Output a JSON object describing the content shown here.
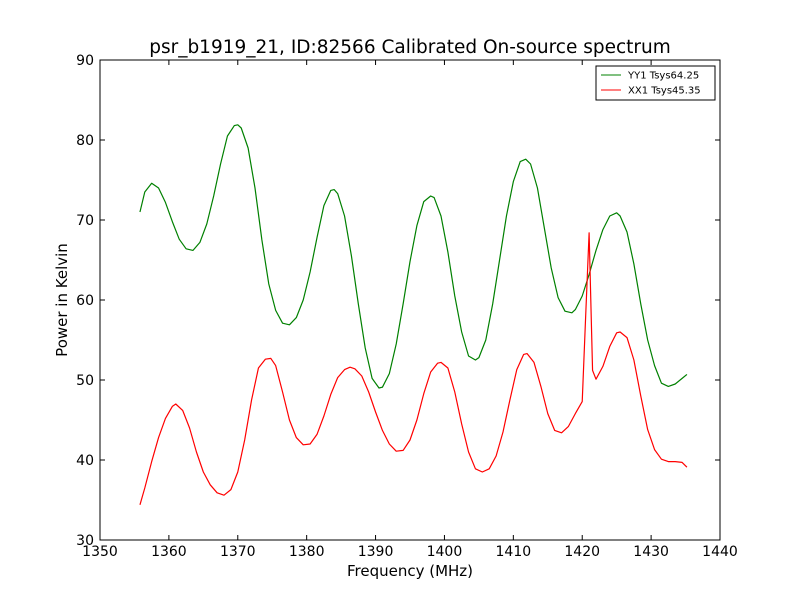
{
  "chart_data": {
    "type": "line",
    "title": "psr_b1919_21, ID:82566 Calibrated On-source spectrum",
    "xlabel": "Frequency (MHz)",
    "ylabel": "Power in Kelvin",
    "xlim": [
      1350,
      1440
    ],
    "ylim": [
      30,
      90
    ],
    "xticks": [
      1350,
      1360,
      1370,
      1380,
      1390,
      1400,
      1410,
      1420,
      1430,
      1440
    ],
    "yticks": [
      30,
      40,
      50,
      60,
      70,
      80,
      90
    ],
    "grid": false,
    "legend_position": "upper-right",
    "series": [
      {
        "name": "YY1 Tsys64.25",
        "color": "#008000",
        "x": [
          1355.8,
          1356.5,
          1357.5,
          1358.5,
          1359.5,
          1360.5,
          1361.5,
          1362.5,
          1363.5,
          1364.5,
          1365.5,
          1366.5,
          1367.5,
          1368.5,
          1369.5,
          1370.0,
          1370.5,
          1371.5,
          1372.5,
          1373.5,
          1374.5,
          1375.5,
          1376.5,
          1377.5,
          1378.5,
          1379.5,
          1380.5,
          1381.5,
          1382.5,
          1383.5,
          1384.0,
          1384.5,
          1385.5,
          1386.5,
          1387.5,
          1388.5,
          1389.5,
          1390.5,
          1391.0,
          1392.0,
          1393.0,
          1394.0,
          1395.0,
          1396.0,
          1397.0,
          1398.0,
          1398.5,
          1399.5,
          1400.5,
          1401.5,
          1402.5,
          1403.5,
          1404.5,
          1405.0,
          1406.0,
          1407.0,
          1408.0,
          1409.0,
          1410.0,
          1411.0,
          1411.8,
          1412.5,
          1413.5,
          1414.5,
          1415.5,
          1416.5,
          1417.5,
          1418.5,
          1419.0,
          1420.0,
          1421.0,
          1422.0,
          1423.0,
          1424.0,
          1425.0,
          1425.5,
          1426.5,
          1427.5,
          1428.5,
          1429.5,
          1430.5,
          1431.5,
          1432.5,
          1433.5,
          1434.5,
          1435.2
        ],
        "y": [
          71.0,
          73.5,
          74.6,
          74.0,
          72.2,
          69.8,
          67.6,
          66.4,
          66.2,
          67.2,
          69.5,
          73.0,
          77.0,
          80.5,
          81.8,
          81.9,
          81.5,
          79.0,
          74.0,
          67.5,
          62.0,
          58.7,
          57.1,
          56.9,
          57.8,
          60.0,
          63.5,
          67.8,
          71.8,
          73.7,
          73.8,
          73.3,
          70.5,
          65.5,
          59.5,
          54.0,
          50.2,
          49.0,
          49.1,
          50.8,
          54.5,
          59.5,
          64.8,
          69.3,
          72.3,
          73.0,
          72.8,
          70.5,
          66.0,
          60.5,
          56.0,
          53.0,
          52.5,
          52.8,
          55.0,
          59.5,
          65.0,
          70.5,
          74.8,
          77.3,
          77.6,
          77.0,
          74.0,
          69.0,
          64.0,
          60.3,
          58.6,
          58.4,
          58.8,
          60.5,
          63.2,
          66.2,
          68.8,
          70.5,
          70.9,
          70.5,
          68.5,
          64.5,
          59.5,
          55.0,
          51.8,
          49.6,
          49.2,
          49.5,
          50.2,
          50.7
        ]
      },
      {
        "name": "XX1 Tsys45.35",
        "color": "#ff0000",
        "x": [
          1355.8,
          1356.5,
          1357.5,
          1358.5,
          1359.5,
          1360.5,
          1361.0,
          1362.0,
          1363.0,
          1364.0,
          1365.0,
          1366.0,
          1367.0,
          1368.0,
          1369.0,
          1370.0,
          1371.0,
          1372.0,
          1373.0,
          1374.0,
          1374.8,
          1375.5,
          1376.5,
          1377.5,
          1378.5,
          1379.5,
          1380.5,
          1381.5,
          1382.5,
          1383.5,
          1384.5,
          1385.5,
          1386.3,
          1387.0,
          1388.0,
          1389.0,
          1390.0,
          1391.0,
          1392.0,
          1393.0,
          1394.0,
          1395.0,
          1396.0,
          1397.0,
          1398.0,
          1399.0,
          1399.5,
          1400.5,
          1401.5,
          1402.5,
          1403.5,
          1404.5,
          1405.5,
          1406.5,
          1407.5,
          1408.5,
          1409.5,
          1410.5,
          1411.5,
          1412.0,
          1413.0,
          1414.0,
          1415.0,
          1416.0,
          1417.0,
          1418.0,
          1419.0,
          1420.0,
          1420.5,
          1421.0,
          1421.5,
          1422.0,
          1423.0,
          1424.0,
          1425.0,
          1425.5,
          1426.5,
          1427.5,
          1428.5,
          1429.5,
          1430.5,
          1431.5,
          1432.5,
          1433.5,
          1434.5,
          1435.2
        ],
        "y": [
          34.4,
          36.5,
          39.8,
          42.8,
          45.2,
          46.7,
          47.0,
          46.2,
          44.0,
          41.0,
          38.5,
          36.9,
          35.9,
          35.6,
          36.3,
          38.5,
          42.5,
          47.5,
          51.5,
          52.6,
          52.7,
          51.8,
          48.5,
          45.0,
          42.8,
          41.9,
          42.0,
          43.2,
          45.5,
          48.2,
          50.3,
          51.3,
          51.6,
          51.4,
          50.5,
          48.5,
          46.0,
          43.7,
          42.0,
          41.1,
          41.2,
          42.5,
          45.0,
          48.3,
          51.0,
          52.1,
          52.2,
          51.5,
          48.5,
          44.5,
          41.0,
          38.9,
          38.5,
          38.9,
          40.5,
          43.5,
          47.5,
          51.3,
          53.2,
          53.3,
          52.2,
          49.2,
          45.8,
          43.7,
          43.4,
          44.2,
          45.8,
          47.3,
          58.0,
          68.4,
          51.2,
          50.1,
          51.7,
          54.2,
          55.9,
          56.0,
          55.3,
          52.5,
          48.0,
          43.8,
          41.3,
          40.1,
          39.8,
          39.8,
          39.7,
          39.1
        ]
      }
    ]
  }
}
